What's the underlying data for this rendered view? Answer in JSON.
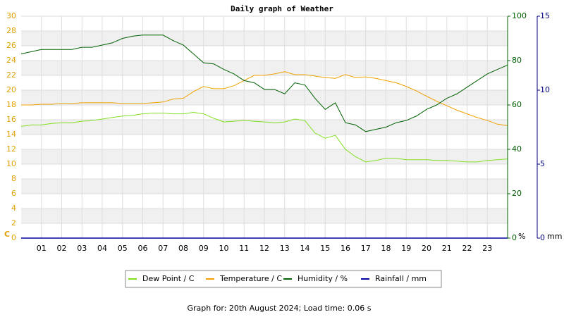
{
  "chart_data": {
    "type": "line",
    "title": "Daily graph of Weather",
    "ylabel": "C",
    "y2label": "%",
    "y3label": "mm",
    "x": [
      0,
      0.5,
      1,
      1.5,
      2,
      2.5,
      3,
      3.5,
      4,
      4.5,
      5,
      5.5,
      6,
      6.5,
      7,
      7.5,
      8,
      8.5,
      9,
      9.5,
      10,
      10.5,
      11,
      11.5,
      12,
      12.5,
      13,
      13.5,
      14,
      14.5,
      15,
      15.5,
      16,
      16.5,
      17,
      17.5,
      18,
      18.5,
      19,
      19.5,
      20,
      20.5,
      21,
      21.5,
      22,
      22.5,
      23,
      23.5,
      24
    ],
    "series": [
      {
        "name": "Dew Point / C",
        "color": "#80e020",
        "axis": "y",
        "values": [
          15.1,
          15.3,
          15.3,
          15.5,
          15.6,
          15.6,
          15.8,
          15.9,
          16.1,
          16.3,
          16.5,
          16.6,
          16.8,
          16.9,
          16.9,
          16.8,
          16.8,
          17.0,
          16.8,
          16.2,
          15.7,
          15.8,
          15.9,
          15.8,
          15.7,
          15.6,
          15.7,
          16.1,
          15.9,
          14.2,
          13.5,
          13.9,
          12.0,
          11.0,
          10.3,
          10.5,
          10.8,
          10.8,
          10.6,
          10.6,
          10.6,
          10.5,
          10.5,
          10.4,
          10.3,
          10.3,
          10.5,
          10.6,
          10.7
        ]
      },
      {
        "name": "Temperature / C",
        "color": "#f0a000",
        "axis": "y",
        "values": [
          18.0,
          18.0,
          18.1,
          18.1,
          18.2,
          18.2,
          18.3,
          18.3,
          18.3,
          18.3,
          18.2,
          18.2,
          18.2,
          18.3,
          18.4,
          18.8,
          18.9,
          19.8,
          20.5,
          20.2,
          20.2,
          20.6,
          21.3,
          22.0,
          22.0,
          22.2,
          22.5,
          22.1,
          22.1,
          21.9,
          21.7,
          21.6,
          22.1,
          21.7,
          21.8,
          21.6,
          21.3,
          21.0,
          20.5,
          19.9,
          19.2,
          18.5,
          17.9,
          17.3,
          16.8,
          16.3,
          15.9,
          15.4,
          15.2
        ]
      },
      {
        "name": "Humidity / %",
        "color": "#006000",
        "axis": "y2",
        "values": [
          83,
          84,
          85,
          85,
          85,
          85,
          86,
          86,
          87,
          88,
          90,
          91,
          91.5,
          91.5,
          91.5,
          89,
          87,
          83,
          79,
          78.5,
          76,
          74,
          71,
          70,
          67,
          67,
          65,
          70,
          69,
          63,
          58,
          61,
          52,
          51,
          48,
          49,
          50,
          52,
          53,
          55,
          58,
          60,
          63,
          65,
          68,
          71,
          74,
          76,
          78
        ]
      },
      {
        "name": "Rainfall / mm",
        "color": "#0000a0",
        "axis": "y3",
        "values": [
          0,
          0,
          0,
          0,
          0,
          0,
          0,
          0,
          0,
          0,
          0,
          0,
          0,
          0,
          0,
          0,
          0,
          0,
          0,
          0,
          0,
          0,
          0,
          0,
          0,
          0,
          0,
          0,
          0,
          0,
          0,
          0,
          0,
          0,
          0,
          0,
          0,
          0,
          0,
          0,
          0,
          0,
          0,
          0,
          0,
          0,
          0,
          0,
          0
        ]
      }
    ],
    "xlim": [
      0,
      24
    ],
    "xticks": [
      {
        "value": 1,
        "label": "01"
      },
      {
        "value": 2,
        "label": "02"
      },
      {
        "value": 3,
        "label": "03"
      },
      {
        "value": 4,
        "label": "04"
      },
      {
        "value": 5,
        "label": "05"
      },
      {
        "value": 6,
        "label": "06"
      },
      {
        "value": 7,
        "label": "07"
      },
      {
        "value": 8,
        "label": "08"
      },
      {
        "value": 9,
        "label": "09"
      },
      {
        "value": 10,
        "label": "10"
      },
      {
        "value": 11,
        "label": "11"
      },
      {
        "value": 12,
        "label": "12"
      },
      {
        "value": 13,
        "label": "13"
      },
      {
        "value": 14,
        "label": "14"
      },
      {
        "value": 15,
        "label": "15"
      },
      {
        "value": 16,
        "label": "16"
      },
      {
        "value": 17,
        "label": "17"
      },
      {
        "value": 18,
        "label": "18"
      },
      {
        "value": 19,
        "label": "19"
      },
      {
        "value": 20,
        "label": "20"
      },
      {
        "value": 21,
        "label": "21"
      },
      {
        "value": 22,
        "label": "22"
      },
      {
        "value": 23,
        "label": "23"
      }
    ],
    "ylim": [
      0,
      30
    ],
    "yticks": [
      0,
      2,
      4,
      6,
      8,
      10,
      12,
      14,
      16,
      18,
      20,
      22,
      24,
      26,
      28,
      30
    ],
    "y2lim": [
      0,
      100
    ],
    "y2ticks": [
      0,
      20,
      40,
      60,
      80,
      100
    ],
    "y3lim": [
      0,
      15
    ],
    "y3ticks": [
      0,
      5,
      10,
      15
    ],
    "grid": true,
    "footer": "Graph for: 20th August 2024; Load time: 0.06 s"
  }
}
